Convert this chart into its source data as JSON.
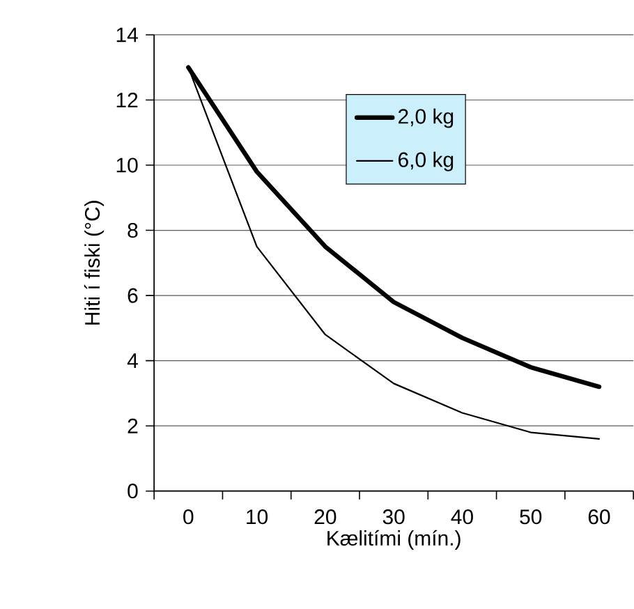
{
  "chart_data": {
    "type": "line",
    "xlabel": "Kælitími (mín.)",
    "ylabel": "Hiti í fiski (°C)",
    "categories": [
      "0",
      "10",
      "20",
      "30",
      "40",
      "50",
      "60"
    ],
    "series": [
      {
        "name": "2,0 kg",
        "color": "#000000",
        "values": [
          13.0,
          9.8,
          7.5,
          5.8,
          4.7,
          3.8,
          3.2
        ]
      },
      {
        "name": "6,0 kg",
        "color": "#000000",
        "values": [
          13.0,
          7.5,
          4.8,
          3.3,
          2.4,
          1.8,
          1.6
        ]
      }
    ],
    "ylim": [
      0,
      14
    ],
    "yticks": [
      0,
      2,
      4,
      6,
      8,
      10,
      12,
      14
    ],
    "grid": "y",
    "legend": "top right",
    "marker": "none",
    "line_style": "solid"
  }
}
